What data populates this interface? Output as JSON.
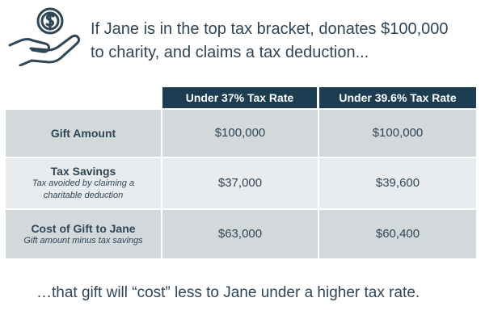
{
  "icon": "hand-holding-dollar-coin-icon",
  "colors": {
    "text": "#2f4656",
    "header_bg": "#1d3d52",
    "row_dark": "#d3d8db",
    "row_light": "#e9ecee"
  },
  "headline": {
    "line1": "If Jane is in the top tax bracket, donates $100,000",
    "line2": "to charity, and claims a tax deduction..."
  },
  "table": {
    "columns": [
      "",
      "Under 37% Tax Rate",
      "Under 39.6% Tax Rate"
    ],
    "rows": [
      {
        "label": "Gift Amount",
        "sublabel": "",
        "values": [
          "$100,000",
          "$100,000"
        ]
      },
      {
        "label": "Tax Savings",
        "sublabel": "Tax avoided by claiming a charitable deduction",
        "values": [
          "$37,000",
          "$39,600"
        ]
      },
      {
        "label": "Cost of Gift to Jane",
        "sublabel": "Gift amount minus tax savings",
        "values": [
          "$63,000",
          "$60,400"
        ]
      }
    ]
  },
  "footer": "…that gift will “cost” less to Jane under a higher tax rate."
}
